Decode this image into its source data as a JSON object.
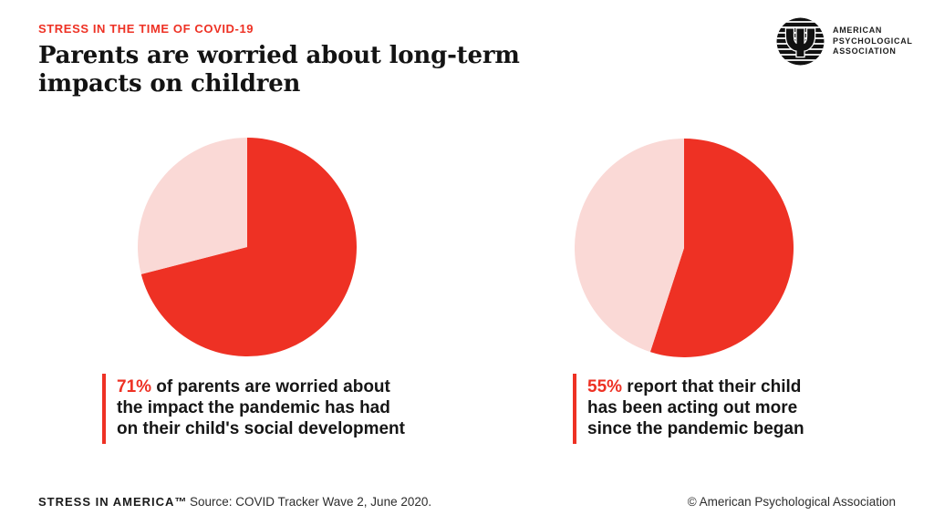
{
  "colors": {
    "accent_red": "#ee3124",
    "light_pink": "#fad9d6",
    "text_black": "#161616"
  },
  "header": {
    "eyebrow": "STRESS IN THE TIME OF COVID-19",
    "title_line1": "Parents are worried about long-term",
    "title_line2": "impacts on children"
  },
  "logo": {
    "symbol": "psi-icon",
    "psi_glyph": "Ψ",
    "org_line1": "AMERICAN",
    "org_line2": "PSYCHOLOGICAL",
    "org_line3": "ASSOCIATION"
  },
  "chart_data": [
    {
      "type": "pie",
      "title": "71% of parents are worried about the impact the pandemic has had on their child's social development",
      "start_angle_deg": 0,
      "direction": "clockwise",
      "slices": [
        {
          "label": "Worried about impact on child's social development",
          "value": 71,
          "color": "#ee3124"
        },
        {
          "label": "Remainder",
          "value": 29,
          "color": "#fad9d6"
        }
      ]
    },
    {
      "type": "pie",
      "title": "55% report that their child has been acting out more since the pandemic began",
      "start_angle_deg": 0,
      "direction": "clockwise",
      "slices": [
        {
          "label": "Child acting out more since pandemic began",
          "value": 55,
          "color": "#ee3124"
        },
        {
          "label": "Remainder",
          "value": 45,
          "color": "#fad9d6"
        }
      ]
    }
  ],
  "captions": [
    {
      "percent": "71%",
      "line1": " of parents are worried about",
      "line2": "the impact the pandemic has had",
      "line3": "on their child's social development"
    },
    {
      "percent": "55%",
      "line1": " report that their child",
      "line2": "has been acting out more",
      "line3": "since the pandemic began"
    }
  ],
  "footer": {
    "brand": "STRESS IN AMERICA™",
    "source": "Source: COVID Tracker Wave 2, June 2020.",
    "copyright": "© American Psychological Association"
  }
}
